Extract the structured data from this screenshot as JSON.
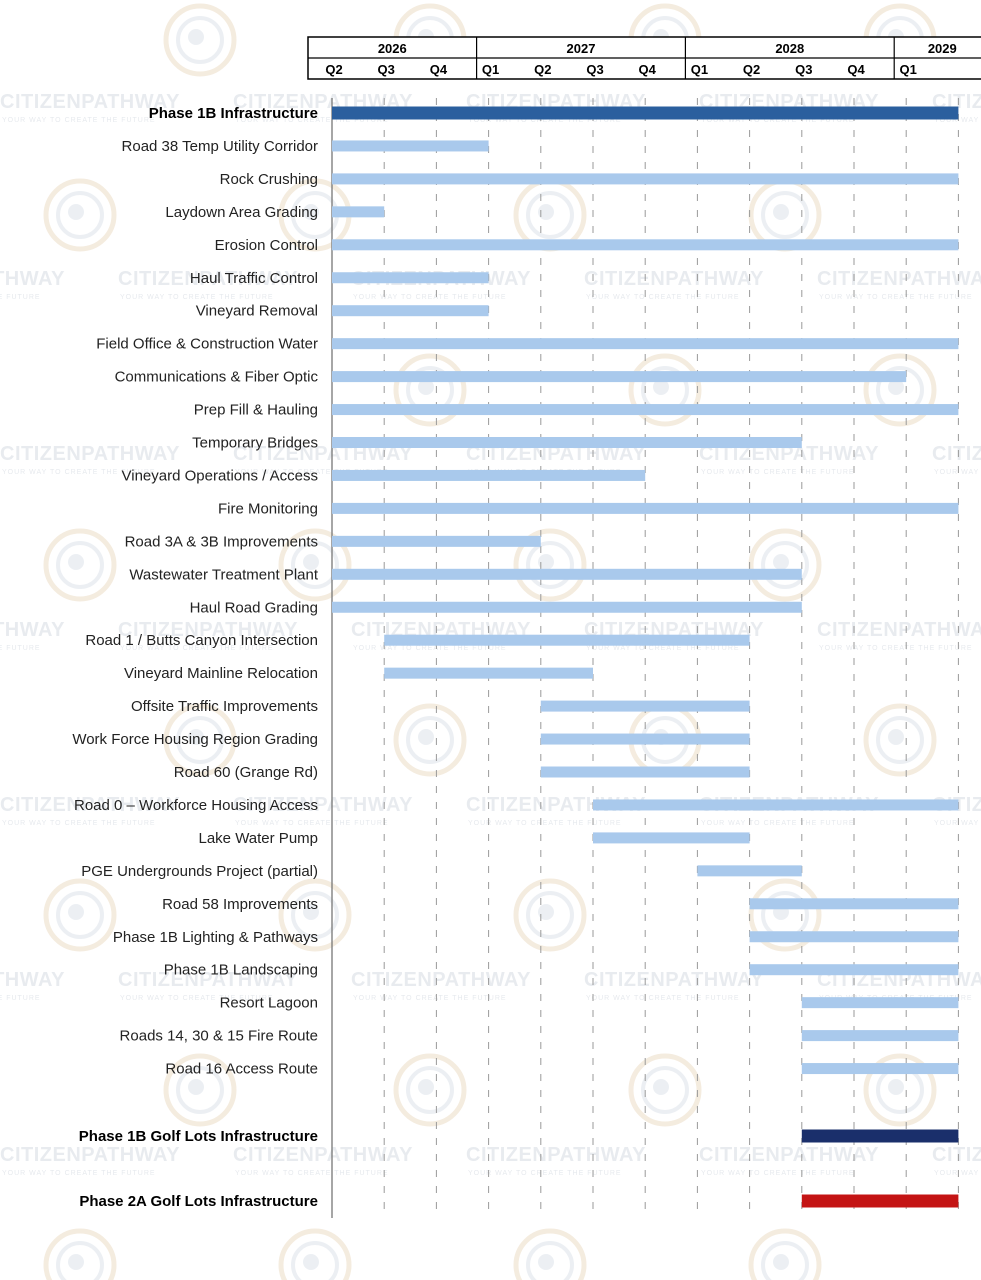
{
  "chart_data": {
    "type": "gantt",
    "title": "",
    "years": [
      {
        "label": "2026",
        "quarters": [
          "Q2",
          "Q3",
          "Q4"
        ]
      },
      {
        "label": "2027",
        "quarters": [
          "Q1",
          "Q2",
          "Q3",
          "Q4"
        ]
      },
      {
        "label": "2028",
        "quarters": [
          "Q1",
          "Q2",
          "Q3",
          "Q4"
        ]
      },
      {
        "label": "2029",
        "quarters": [
          "Q1"
        ]
      }
    ],
    "timeline_start": "2026-Q2",
    "timeline_end": "2029-Q1",
    "colors": {
      "summary": "#2b5f9e",
      "task": "#a9c9ec",
      "golf_1b": "#1a2f6b",
      "golf_2a": "#c41414",
      "grid": "#9a9a9a"
    },
    "tasks": [
      {
        "label": "Phase 1B Infrastructure",
        "start": "2026-Q2",
        "end": "2029-Q1",
        "style": "summary",
        "bold": true
      },
      {
        "label": "Road 38 Temp Utility Corridor",
        "start": "2026-Q2",
        "end": "2026-Q4",
        "style": "task"
      },
      {
        "label": "Rock Crushing",
        "start": "2026-Q2",
        "end": "2029-Q1",
        "style": "task"
      },
      {
        "label": "Laydown Area Grading",
        "start": "2026-Q2",
        "end": "2026-Q2",
        "style": "task"
      },
      {
        "label": "Erosion Control",
        "start": "2026-Q2",
        "end": "2029-Q1",
        "style": "task"
      },
      {
        "label": "Haul Traffic Control",
        "start": "2026-Q2",
        "end": "2026-Q4",
        "style": "task"
      },
      {
        "label": "Vineyard Removal",
        "start": "2026-Q2",
        "end": "2026-Q4",
        "style": "task"
      },
      {
        "label": "Field Office & Construction Water",
        "start": "2026-Q2",
        "end": "2029-Q1",
        "style": "task"
      },
      {
        "label": "Communications & Fiber Optic",
        "start": "2026-Q2",
        "end": "2028-Q4",
        "style": "task"
      },
      {
        "label": "Prep Fill & Hauling",
        "start": "2026-Q2",
        "end": "2029-Q1",
        "style": "task"
      },
      {
        "label": "Temporary Bridges",
        "start": "2026-Q2",
        "end": "2028-Q2",
        "style": "task"
      },
      {
        "label": "Vineyard Operations / Access",
        "start": "2026-Q2",
        "end": "2027-Q3",
        "style": "task"
      },
      {
        "label": "Fire Monitoring",
        "start": "2026-Q2",
        "end": "2029-Q1",
        "style": "task"
      },
      {
        "label": "Road 3A & 3B Improvements",
        "start": "2026-Q2",
        "end": "2027-Q1",
        "style": "task"
      },
      {
        "label": "Wastewater Treatment Plant",
        "start": "2026-Q2",
        "end": "2028-Q2",
        "style": "task"
      },
      {
        "label": "Haul Road Grading",
        "start": "2026-Q2",
        "end": "2028-Q2",
        "style": "task"
      },
      {
        "label": "Road 1 / Butts Canyon Intersection",
        "start": "2026-Q3",
        "end": "2028-Q1",
        "style": "task"
      },
      {
        "label": "Vineyard Mainline Relocation",
        "start": "2026-Q3",
        "end": "2027-Q2",
        "style": "task"
      },
      {
        "label": "Offsite Traffic Improvements",
        "start": "2027-Q2",
        "end": "2028-Q1",
        "style": "task"
      },
      {
        "label": "Work Force Housing Region Grading",
        "start": "2027-Q2",
        "end": "2028-Q1",
        "style": "task"
      },
      {
        "label": "Road 60 (Grange Rd)",
        "start": "2027-Q2",
        "end": "2028-Q1",
        "style": "task"
      },
      {
        "label": "Road 0 – Workforce Housing Access",
        "start": "2027-Q3",
        "end": "2029-Q1",
        "style": "task"
      },
      {
        "label": "Lake Water Pump",
        "start": "2027-Q3",
        "end": "2028-Q1",
        "style": "task"
      },
      {
        "label": "PGE Undergrounds Project (partial)",
        "start": "2028-Q1",
        "end": "2028-Q2",
        "style": "task"
      },
      {
        "label": "Road 58 Improvements",
        "start": "2028-Q2",
        "end": "2029-Q1",
        "style": "task"
      },
      {
        "label": "Phase 1B Lighting & Pathways",
        "start": "2028-Q2",
        "end": "2029-Q1",
        "style": "task"
      },
      {
        "label": "Phase 1B Landscaping",
        "start": "2028-Q2",
        "end": "2029-Q1",
        "style": "task"
      },
      {
        "label": "Resort Lagoon",
        "start": "2028-Q3",
        "end": "2029-Q1",
        "style": "task"
      },
      {
        "label": "Roads 14, 30 & 15 Fire Route",
        "start": "2028-Q3",
        "end": "2029-Q1",
        "style": "task"
      },
      {
        "label": "Road 16 Access Route",
        "start": "2028-Q3",
        "end": "2029-Q1",
        "style": "task"
      },
      {
        "label": "Phase 1B Golf Lots Infrastructure",
        "start": "2028-Q3",
        "end": "2029-Q1",
        "style": "golf_1b",
        "bold": true
      },
      {
        "label": "Phase 2A Golf Lots Infrastructure",
        "start": "2028-Q3",
        "end": "2029-Q1",
        "style": "golf_2a",
        "bold": true
      }
    ]
  },
  "watermark": {
    "brand": "CITIZENPATHWAY",
    "tagline": "YOUR WAY TO CREATE THE FUTURE",
    "color": "#d6dbe2"
  }
}
